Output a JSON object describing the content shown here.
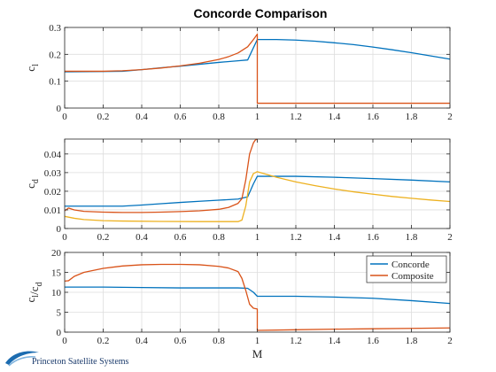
{
  "title": "Concorde Comparison",
  "logo": {
    "text": "Princeton Satellite Systems",
    "accent": "#1c6cb0"
  },
  "colors": {
    "blue": "#0072BD",
    "orange": "#D95319",
    "yellow": "#EDB120",
    "grid": "#dedede",
    "axis": "#262626"
  },
  "chart_data": [
    {
      "type": "line",
      "ylabel": "c_l",
      "xlabel": "",
      "xlim": [
        0,
        2
      ],
      "ylim": [
        0,
        0.3
      ],
      "xticks": [
        0,
        0.2,
        0.4,
        0.6,
        0.8,
        1,
        1.2,
        1.4,
        1.6,
        1.8,
        2
      ],
      "yticks": [
        0,
        0.1,
        0.2,
        0.3
      ],
      "grid": true,
      "series": [
        {
          "color": "#0072BD",
          "points": [
            [
              0,
              0.135
            ],
            [
              0.2,
              0.136
            ],
            [
              0.3,
              0.137
            ],
            [
              0.4,
              0.143
            ],
            [
              0.5,
              0.15
            ],
            [
              0.6,
              0.156
            ],
            [
              0.7,
              0.163
            ],
            [
              0.8,
              0.17
            ],
            [
              0.9,
              0.176
            ],
            [
              0.95,
              0.179
            ],
            [
              1.0,
              0.255
            ],
            [
              1.1,
              0.255
            ],
            [
              1.2,
              0.253
            ],
            [
              1.3,
              0.249
            ],
            [
              1.4,
              0.243
            ],
            [
              1.5,
              0.236
            ],
            [
              1.6,
              0.227
            ],
            [
              1.7,
              0.217
            ],
            [
              1.8,
              0.206
            ],
            [
              1.9,
              0.194
            ],
            [
              2.0,
              0.182
            ]
          ]
        },
        {
          "color": "#D95319",
          "points": [
            [
              0,
              0.137
            ],
            [
              0.1,
              0.137
            ],
            [
              0.2,
              0.137
            ],
            [
              0.3,
              0.139
            ],
            [
              0.4,
              0.143
            ],
            [
              0.5,
              0.149
            ],
            [
              0.6,
              0.157
            ],
            [
              0.7,
              0.167
            ],
            [
              0.8,
              0.181
            ],
            [
              0.85,
              0.191
            ],
            [
              0.9,
              0.205
            ],
            [
              0.95,
              0.228
            ],
            [
              0.98,
              0.255
            ],
            [
              1.0,
              0.275
            ],
            [
              1.0,
              0.018
            ],
            [
              1.2,
              0.018
            ],
            [
              1.5,
              0.018
            ],
            [
              2.0,
              0.018
            ]
          ]
        }
      ]
    },
    {
      "type": "line",
      "ylabel": "c_d",
      "xlabel": "",
      "xlim": [
        0,
        2
      ],
      "ylim": [
        0,
        0.048
      ],
      "xticks": [
        0,
        0.2,
        0.4,
        0.6,
        0.8,
        1,
        1.2,
        1.4,
        1.6,
        1.8,
        2
      ],
      "yticks": [
        0,
        0.01,
        0.02,
        0.03,
        0.04
      ],
      "grid": true,
      "series": [
        {
          "color": "#0072BD",
          "points": [
            [
              0,
              0.012
            ],
            [
              0.3,
              0.012
            ],
            [
              0.4,
              0.0126
            ],
            [
              0.5,
              0.0133
            ],
            [
              0.6,
              0.014
            ],
            [
              0.7,
              0.0146
            ],
            [
              0.8,
              0.0152
            ],
            [
              0.9,
              0.0158
            ],
            [
              0.95,
              0.017
            ],
            [
              0.98,
              0.024
            ],
            [
              1.0,
              0.028
            ],
            [
              1.2,
              0.028
            ],
            [
              1.4,
              0.0275
            ],
            [
              1.6,
              0.0268
            ],
            [
              1.8,
              0.026
            ],
            [
              2.0,
              0.025
            ]
          ]
        },
        {
          "color": "#D95319",
          "points": [
            [
              0,
              0.0095
            ],
            [
              0.02,
              0.011
            ],
            [
              0.05,
              0.01
            ],
            [
              0.1,
              0.0092
            ],
            [
              0.2,
              0.0088
            ],
            [
              0.3,
              0.0086
            ],
            [
              0.4,
              0.0086
            ],
            [
              0.5,
              0.0088
            ],
            [
              0.6,
              0.0091
            ],
            [
              0.7,
              0.0095
            ],
            [
              0.8,
              0.0103
            ],
            [
              0.85,
              0.0113
            ],
            [
              0.9,
              0.0135
            ],
            [
              0.92,
              0.016
            ],
            [
              0.94,
              0.026
            ],
            [
              0.96,
              0.04
            ],
            [
              0.98,
              0.046
            ],
            [
              0.99,
              0.0475
            ],
            [
              1.0,
              0.048
            ]
          ]
        },
        {
          "color": "#EDB120",
          "points": [
            [
              0,
              0.0065
            ],
            [
              0.05,
              0.0055
            ],
            [
              0.1,
              0.0048
            ],
            [
              0.2,
              0.0042
            ],
            [
              0.3,
              0.004
            ],
            [
              0.5,
              0.0038
            ],
            [
              0.7,
              0.0037
            ],
            [
              0.8,
              0.0037
            ],
            [
              0.9,
              0.0037
            ],
            [
              0.92,
              0.0045
            ],
            [
              0.94,
              0.012
            ],
            [
              0.96,
              0.025
            ],
            [
              0.98,
              0.0295
            ],
            [
              1.0,
              0.0305
            ],
            [
              1.05,
              0.029
            ],
            [
              1.1,
              0.0275
            ],
            [
              1.2,
              0.025
            ],
            [
              1.3,
              0.023
            ],
            [
              1.4,
              0.0212
            ],
            [
              1.5,
              0.0197
            ],
            [
              1.6,
              0.0184
            ],
            [
              1.7,
              0.0172
            ],
            [
              1.8,
              0.0162
            ],
            [
              1.9,
              0.0153
            ],
            [
              2.0,
              0.0145
            ]
          ]
        }
      ]
    },
    {
      "type": "line",
      "ylabel": "c_l/c_d",
      "xlabel": "M",
      "xlim": [
        0,
        2
      ],
      "ylim": [
        0,
        20
      ],
      "xticks": [
        0,
        0.2,
        0.4,
        0.6,
        0.8,
        1,
        1.2,
        1.4,
        1.6,
        1.8,
        2
      ],
      "yticks": [
        0,
        5,
        10,
        15,
        20
      ],
      "grid": true,
      "legend": {
        "entries": [
          "Concorde",
          "Composite"
        ],
        "placement": "top-right"
      },
      "series": [
        {
          "name": "Concorde",
          "color": "#0072BD",
          "points": [
            [
              0,
              11.3
            ],
            [
              0.2,
              11.3
            ],
            [
              0.4,
              11.2
            ],
            [
              0.6,
              11.1
            ],
            [
              0.8,
              11.1
            ],
            [
              0.9,
              11.1
            ],
            [
              0.95,
              11.0
            ],
            [
              0.98,
              10.0
            ],
            [
              1.0,
              9.0
            ],
            [
              1.2,
              9.0
            ],
            [
              1.4,
              8.8
            ],
            [
              1.6,
              8.5
            ],
            [
              1.8,
              7.9
            ],
            [
              2.0,
              7.2
            ]
          ]
        },
        {
          "name": "Composite",
          "color": "#D95319",
          "points": [
            [
              0,
              12.8
            ],
            [
              0.02,
              12.9
            ],
            [
              0.05,
              14.0
            ],
            [
              0.1,
              15.0
            ],
            [
              0.2,
              16.0
            ],
            [
              0.3,
              16.6
            ],
            [
              0.4,
              16.9
            ],
            [
              0.5,
              17.0
            ],
            [
              0.6,
              17.0
            ],
            [
              0.7,
              16.9
            ],
            [
              0.8,
              16.5
            ],
            [
              0.85,
              16.1
            ],
            [
              0.9,
              15.2
            ],
            [
              0.92,
              13.5
            ],
            [
              0.94,
              10.5
            ],
            [
              0.96,
              7.0
            ],
            [
              0.98,
              6.0
            ],
            [
              1.0,
              5.8
            ],
            [
              1.0,
              0.45
            ],
            [
              1.2,
              0.6
            ],
            [
              1.4,
              0.75
            ],
            [
              1.6,
              0.85
            ],
            [
              1.8,
              0.95
            ],
            [
              2.0,
              1.05
            ]
          ]
        }
      ]
    }
  ]
}
